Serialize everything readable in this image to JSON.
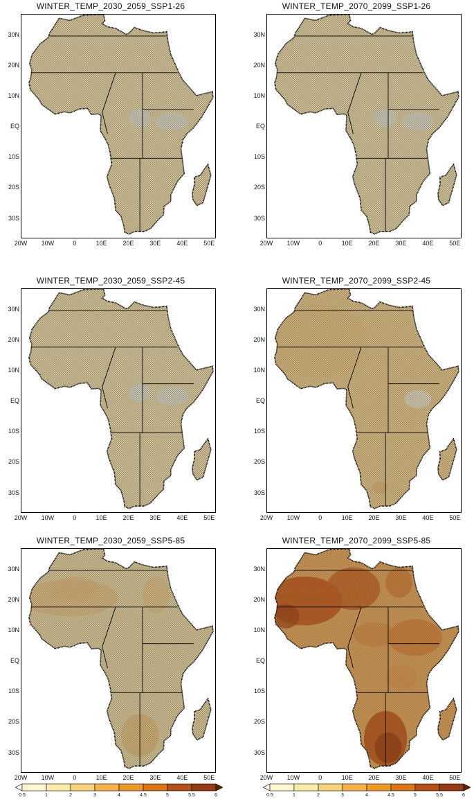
{
  "figure": {
    "lat_ticks": [
      "30N",
      "20N",
      "10N",
      "EQ",
      "10S",
      "20S",
      "30S"
    ],
    "lon_ticks": [
      "20W",
      "10W",
      "0",
      "10E",
      "20E",
      "30E",
      "40E",
      "50E"
    ]
  },
  "panels": [
    {
      "title": "WINTER_TEMP_2030_2059_SSP1-26",
      "scheme": "light"
    },
    {
      "title": "WINTER_TEMP_2070_2099_SSP1-26",
      "scheme": "light"
    },
    {
      "title": "WINTER_TEMP_2030_2059_SSP2-45",
      "scheme": "light"
    },
    {
      "title": "WINTER_TEMP_2070_2099_SSP2-45",
      "scheme": "medium"
    },
    {
      "title": "WINTER_TEMP_2030_2059_SSP5-85",
      "scheme": "warm"
    },
    {
      "title": "WINTER_TEMP_2070_2099_SSP5-85",
      "scheme": "hot"
    }
  ],
  "colorbars": [
    {
      "labels": [
        "0.5",
        "1",
        "2",
        "3",
        "4",
        "4.5",
        "5",
        "5.5",
        "6"
      ],
      "colors": [
        "#ffffff",
        "#fdf7cf",
        "#fcebaa",
        "#f8d37e",
        "#f4b24f",
        "#ec9a2a",
        "#d8761b",
        "#b4511a",
        "#933c14",
        "#5f2208"
      ]
    },
    {
      "labels": [
        "0.5",
        "1",
        "2",
        "3",
        "4",
        "4.5",
        "5",
        "5.5",
        "6"
      ],
      "colors": [
        "#ffffff",
        "#fdf7cf",
        "#fcebaa",
        "#f8d37e",
        "#f4b24f",
        "#ec9a2a",
        "#d8761b",
        "#b4511a",
        "#933c14",
        "#5f2208"
      ]
    }
  ],
  "schemes": {
    "light": {
      "base": "#d6c8a0"
    },
    "medium": {
      "base": "#d7bc88"
    },
    "warm": {
      "base": "#d4c59b"
    },
    "hot": {
      "base": "#d39a58"
    }
  }
}
